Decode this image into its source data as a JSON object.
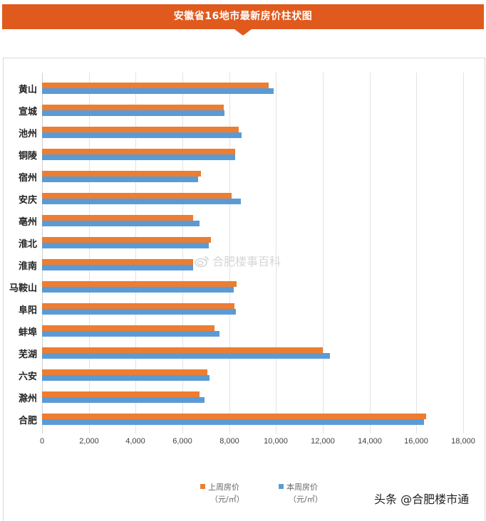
{
  "header": {
    "title": "安徽省16地市最新房价柱状图"
  },
  "chart_data": {
    "type": "bar",
    "orientation": "horizontal",
    "title": "安徽省16地市最新房价柱状图",
    "categories": [
      "黄山",
      "宣城",
      "池州",
      "铜陵",
      "宿州",
      "安庆",
      "亳州",
      "淮北",
      "淮南",
      "马鞍山",
      "阜阳",
      "蚌埠",
      "芜湖",
      "六安",
      "滁州",
      "合肥"
    ],
    "series": [
      {
        "name": "上周房价（元/㎡）",
        "color": "#ED7D31",
        "values": [
          9690,
          7770,
          8410,
          8260,
          6790,
          8100,
          6460,
          7220,
          6460,
          8320,
          8220,
          7370,
          12000,
          7070,
          6730,
          16420
        ]
      },
      {
        "name": "本周房价（元/㎡）",
        "color": "#5B9BD5",
        "values": [
          9900,
          7800,
          8530,
          8260,
          6670,
          8500,
          6730,
          7130,
          6460,
          8190,
          8290,
          7590,
          12310,
          7160,
          6950,
          16330
        ]
      }
    ],
    "xlabel": "",
    "ylabel": "",
    "xlim": [
      0,
      18000
    ],
    "xticks": [
      "0",
      "2,000",
      "4,000",
      "6,000",
      "8,000",
      "10,000",
      "12,000",
      "14,000",
      "16,000",
      "18,000"
    ],
    "grid": true,
    "legend_position": "bottom"
  },
  "legend": {
    "items": [
      {
        "label": "上周房价",
        "unit": "（元/㎡）",
        "color": "#ED7D31"
      },
      {
        "label": "本周房价",
        "unit": "（元/㎡）",
        "color": "#5B9BD5"
      }
    ]
  },
  "watermark": {
    "text": "合肥楼事百科"
  },
  "credit": {
    "text": "头条 @合肥楼市通"
  }
}
